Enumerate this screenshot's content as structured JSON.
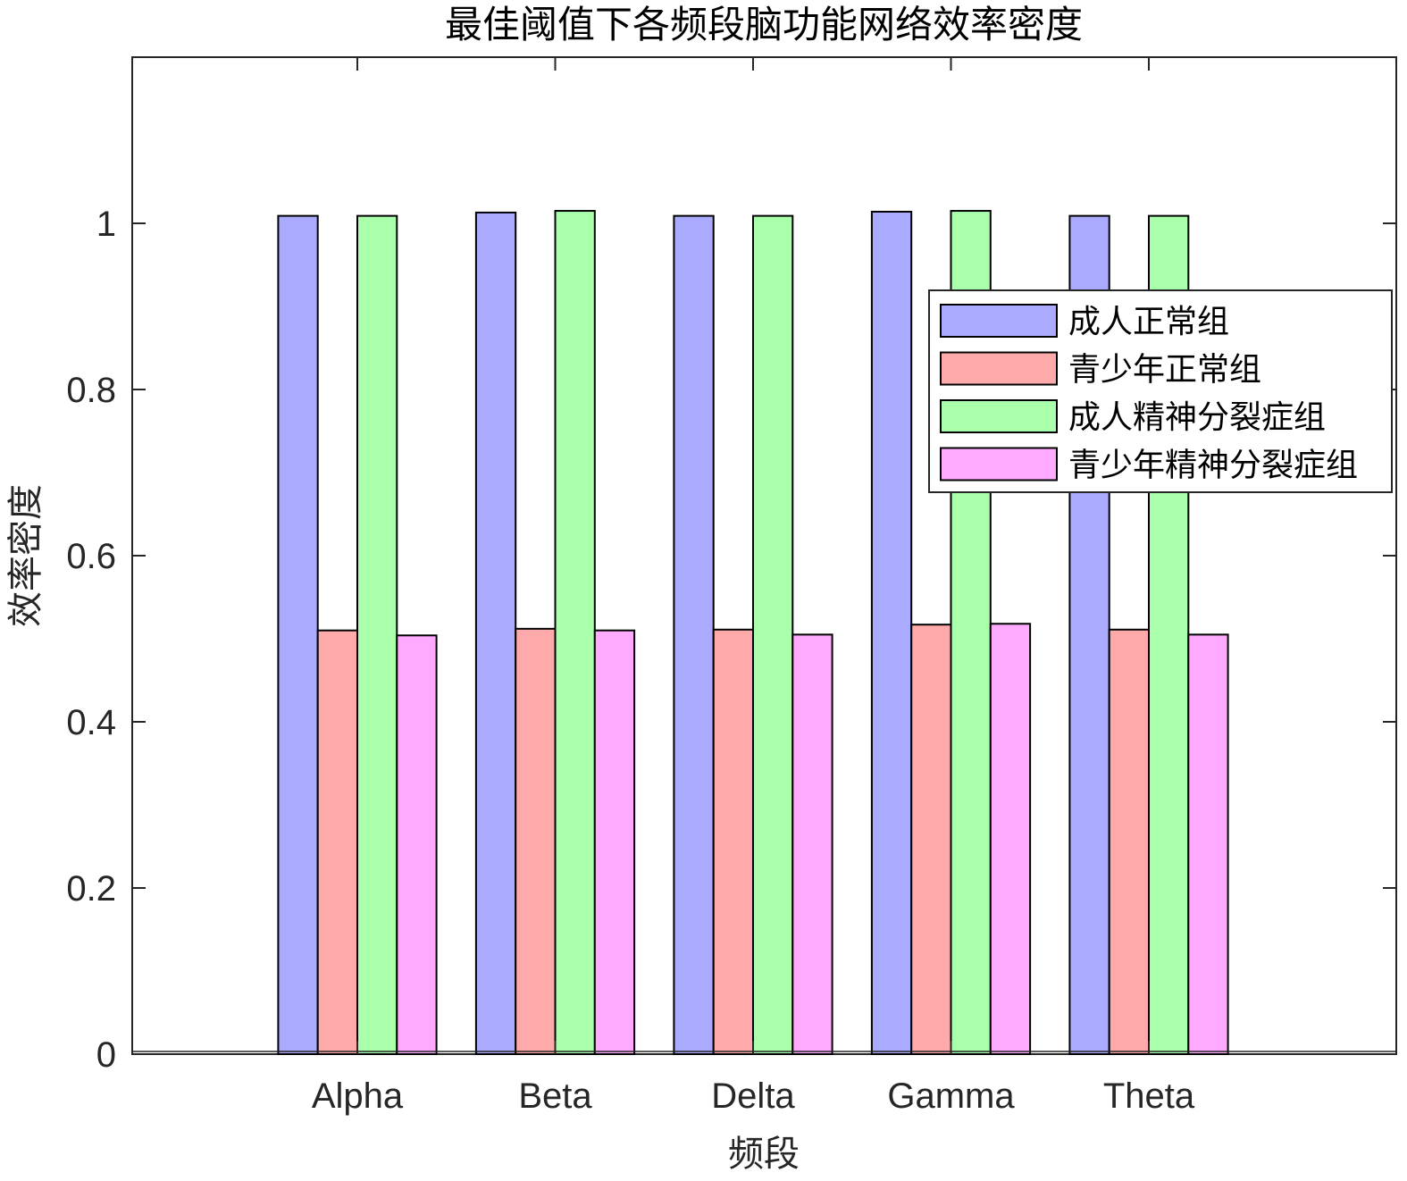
{
  "chart_data": {
    "type": "bar",
    "title": "最佳阈值下各频段脑功能网络效率密度",
    "xlabel": "频段",
    "ylabel": "效率密度",
    "categories": [
      "Alpha",
      "Beta",
      "Delta",
      "Gamma",
      "Theta"
    ],
    "series": [
      {
        "name": "成人正常组",
        "color": "#aaaaff",
        "values": [
          1.009,
          1.013,
          1.009,
          1.014,
          1.009
        ]
      },
      {
        "name": "青少年正常组",
        "color": "#ffaaaa",
        "values": [
          0.51,
          0.512,
          0.511,
          0.517,
          0.511
        ]
      },
      {
        "name": "成人精神分裂症组",
        "color": "#aaffaa",
        "values": [
          1.009,
          1.015,
          1.009,
          1.015,
          1.009
        ]
      },
      {
        "name": "青少年精神分裂症组",
        "color": "#ffaaff",
        "values": [
          0.504,
          0.51,
          0.505,
          0.518,
          0.505
        ]
      }
    ],
    "ylim": [
      0,
      1.2
    ],
    "yticks": [
      "0",
      "0.2",
      "0.4",
      "0.6",
      "0.8",
      "1"
    ],
    "legend_position": "top-right",
    "grid": false
  }
}
